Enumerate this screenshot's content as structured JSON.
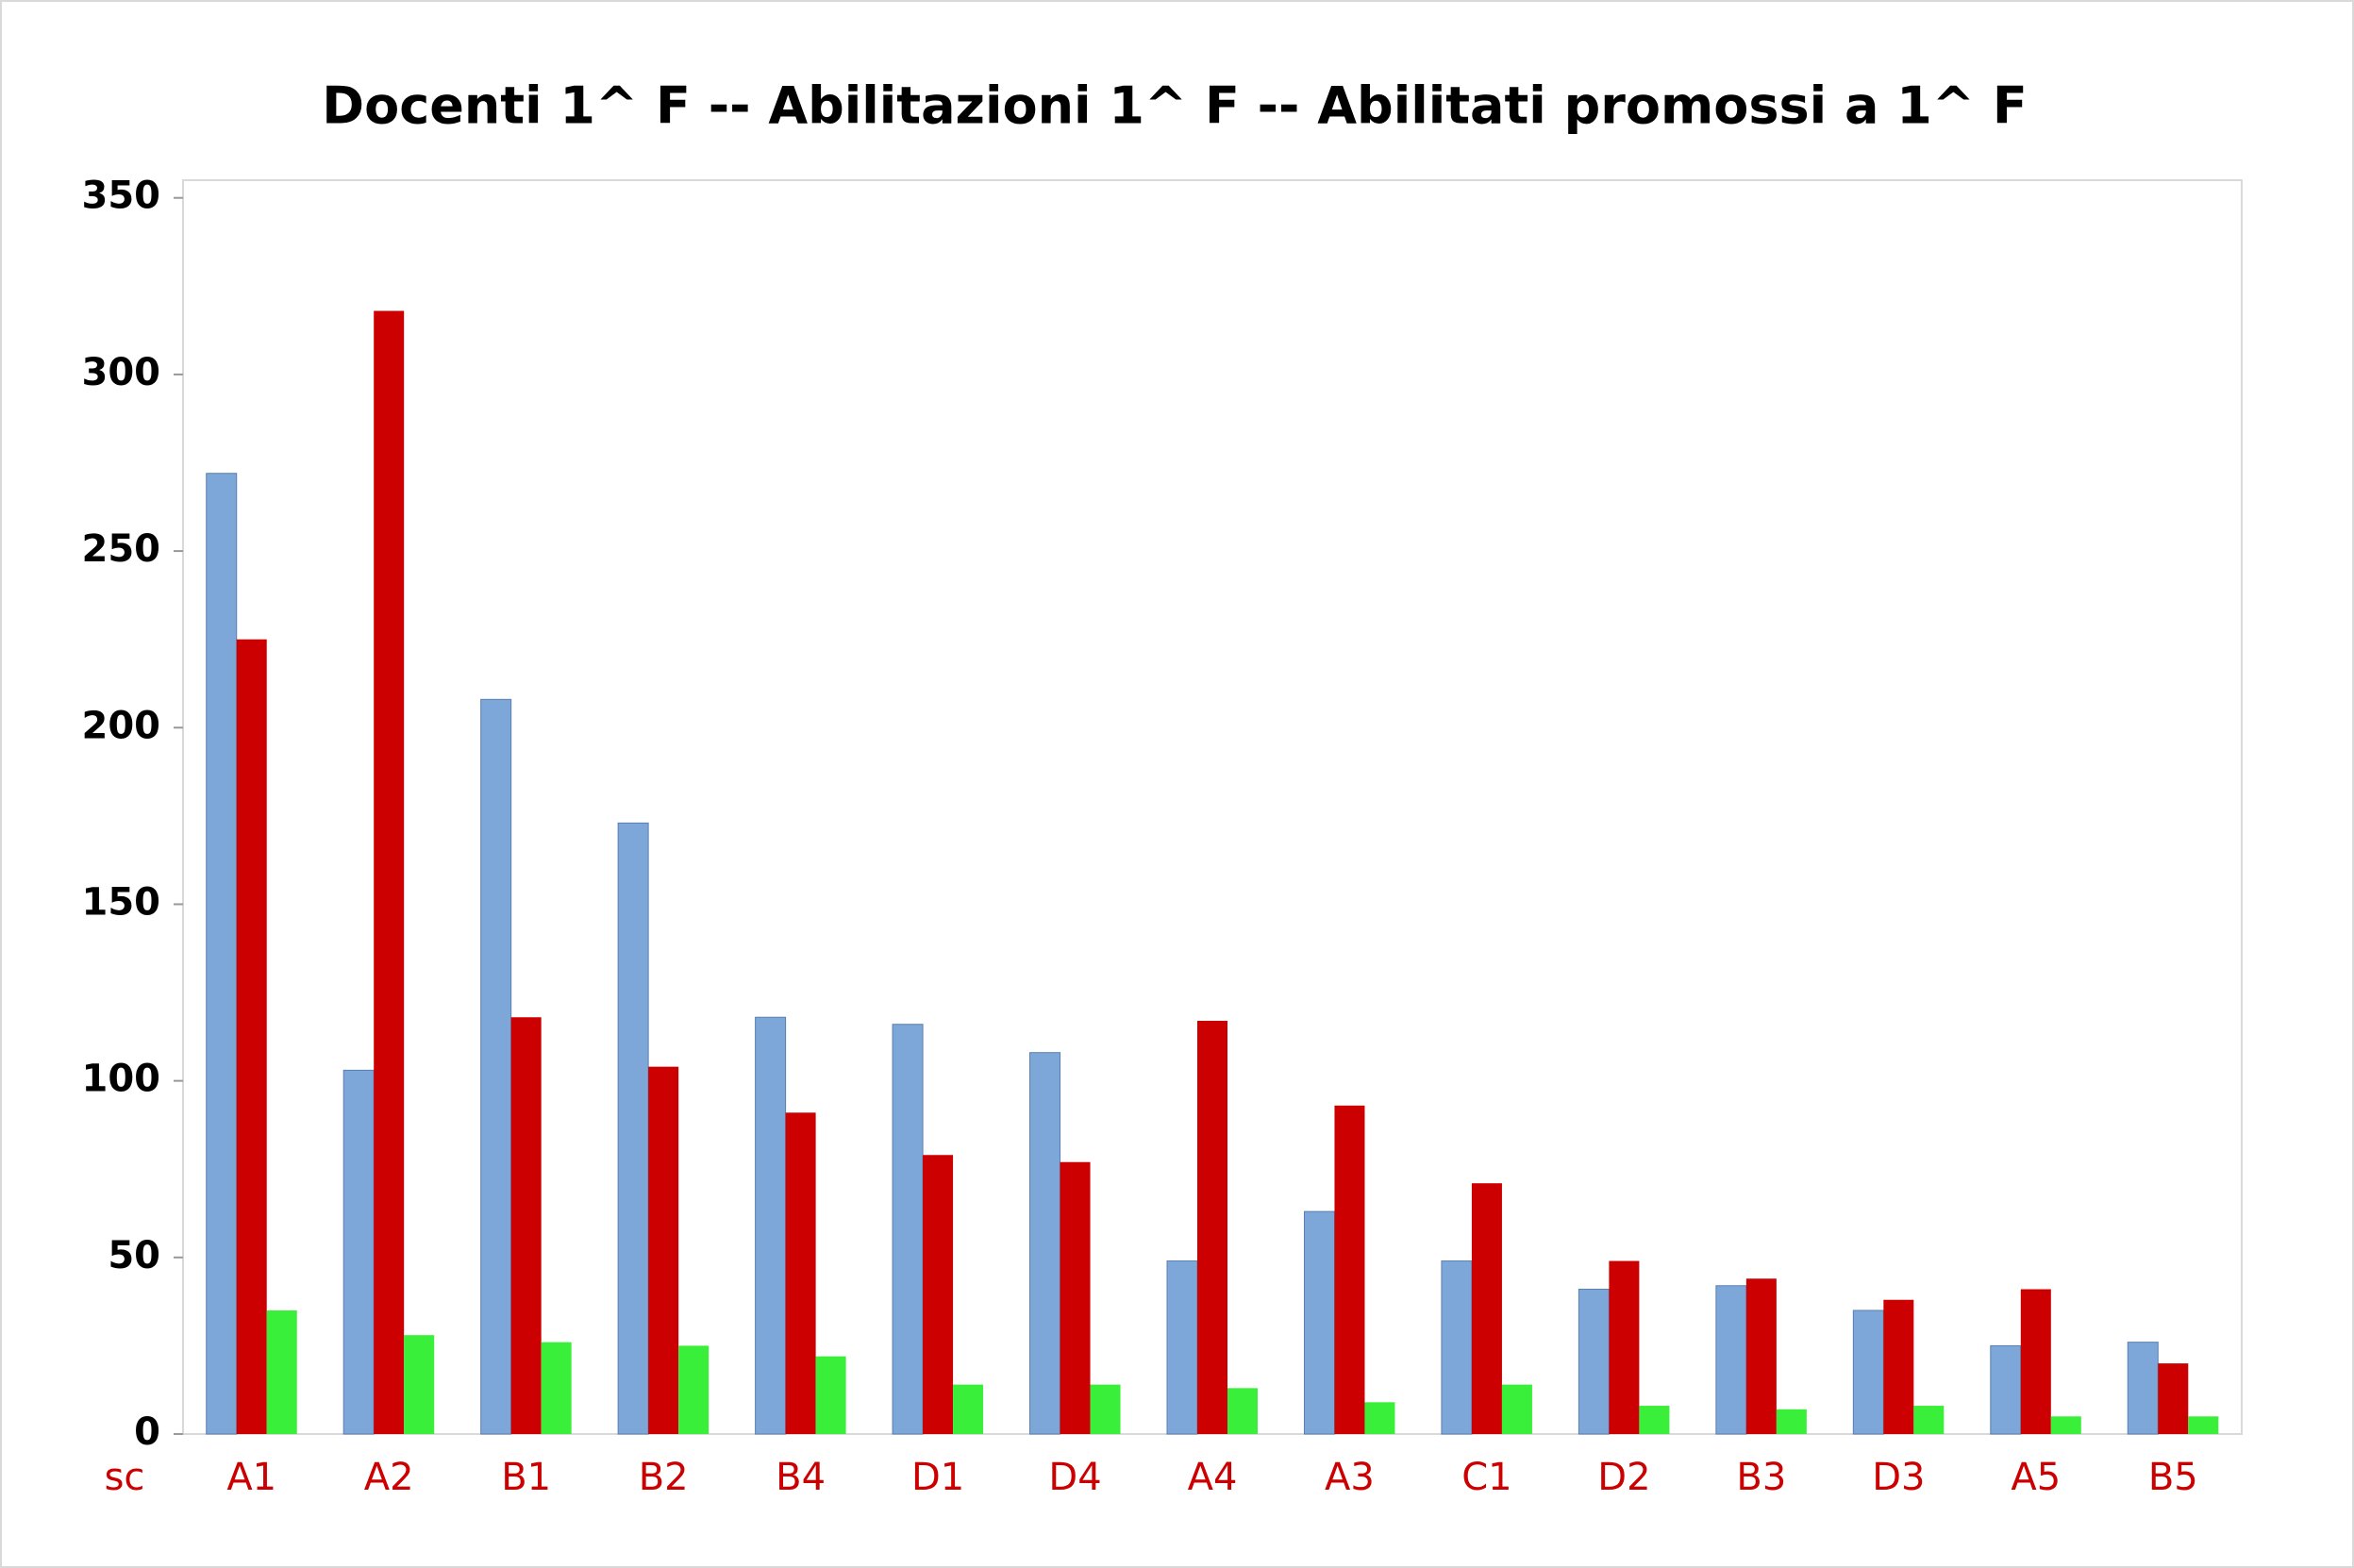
{
  "chart_data": {
    "type": "bar",
    "title": "Docenti 1^ F -- Abilitazioni 1^ F -- Abilitati promossi a 1^ F",
    "x_label": "sc",
    "categories": [
      "A1",
      "A2",
      "B1",
      "B2",
      "B4",
      "D1",
      "D4",
      "A4",
      "A3",
      "C1",
      "D2",
      "B3",
      "D3",
      "A5",
      "B5"
    ],
    "series": [
      {
        "color": "#7da7d9",
        "values": [
          272,
          103,
          208,
          173,
          118,
          116,
          108,
          49,
          63,
          49,
          41,
          42,
          35,
          25,
          26
        ]
      },
      {
        "color": "#cc0000",
        "values": [
          225,
          318,
          118,
          104,
          91,
          79,
          77,
          117,
          93,
          71,
          49,
          44,
          38,
          41,
          20
        ]
      },
      {
        "color": "#3aef3a",
        "values": [
          35,
          28,
          26,
          25,
          22,
          14,
          14,
          13,
          9,
          14,
          8,
          7,
          8,
          5,
          5
        ]
      }
    ],
    "ylim": [
      0,
      355
    ],
    "yticks": [
      0,
      50,
      100,
      150,
      200,
      250,
      300,
      350
    ],
    "category_color": "#cc0000"
  }
}
